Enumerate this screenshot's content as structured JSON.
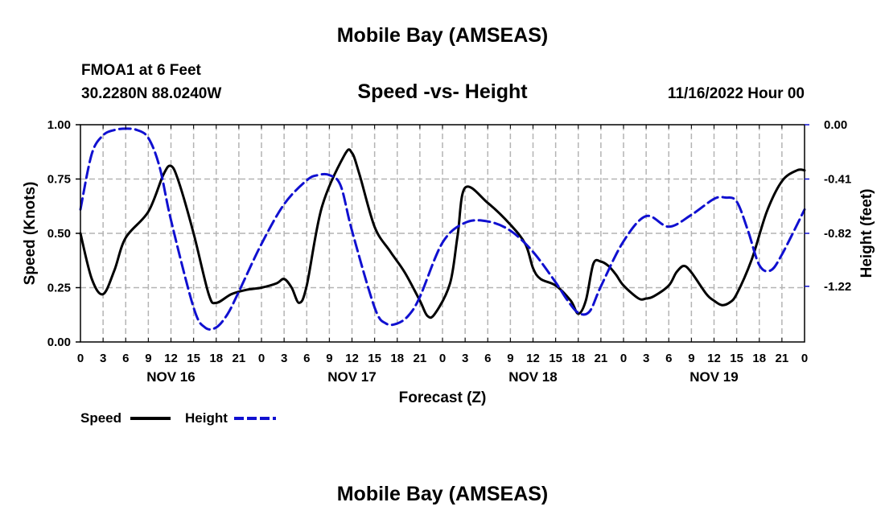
{
  "header": {
    "title": "Mobile Bay (AMSEAS)",
    "station": "FMOA1 at 6 Feet",
    "coords": "30.2280N  88.0240W",
    "subtitle": "Speed -vs- Height",
    "datetime": "11/16/2022 Hour 00"
  },
  "footer": {
    "title": "Mobile Bay (AMSEAS)"
  },
  "colors": {
    "speed": "#000000",
    "height": "#1010d0",
    "grid": "#b4b4b4"
  },
  "chart_data": {
    "type": "line",
    "title": "Speed -vs- Height",
    "xlabel": "Forecast (Z)",
    "ylabel": "Speed (Knots)",
    "y2label": "Height (feet)",
    "xlim": [
      0,
      96
    ],
    "ylim": [
      0,
      1.0
    ],
    "y2lim": [
      -1.64,
      0.0
    ],
    "x_tick_labels": [
      "0",
      "3",
      "6",
      "9",
      "12",
      "15",
      "18",
      "21",
      "0",
      "3",
      "6",
      "9",
      "12",
      "15",
      "18",
      "21",
      "0",
      "3",
      "6",
      "9",
      "12",
      "15",
      "18",
      "21",
      "0",
      "3",
      "6",
      "9",
      "12",
      "15",
      "18",
      "21",
      "0"
    ],
    "day_labels": [
      {
        "label": "NOV 16",
        "x": 12
      },
      {
        "label": "NOV 17",
        "x": 36
      },
      {
        "label": "NOV 18",
        "x": 60
      },
      {
        "label": "NOV 19",
        "x": 84
      }
    ],
    "y_tick_labels": [
      "0.00",
      "0.25",
      "0.50",
      "0.75",
      "1.00"
    ],
    "y_tick_values": [
      0,
      0.25,
      0.5,
      0.75,
      1.0
    ],
    "y2_tick_labels": [
      "0.00",
      "-0.41",
      "-0.82",
      "-1.22"
    ],
    "y2_tick_values": [
      0.0,
      -0.41,
      -0.82,
      -1.22
    ],
    "legend": [
      {
        "name": "Speed",
        "style": "solid"
      },
      {
        "name": "Height",
        "style": "dashed"
      }
    ],
    "series": [
      {
        "name": "Speed",
        "axis": "left",
        "x": [
          0,
          1.5,
          3,
          4.5,
          6,
          9,
          11,
          12,
          13,
          15,
          17,
          18,
          20,
          22,
          24,
          26,
          27,
          28,
          29,
          30,
          32,
          35,
          36,
          37,
          39,
          41,
          43,
          45,
          46,
          47,
          49,
          50,
          51,
          54,
          57,
          59,
          60,
          61,
          63,
          65,
          66,
          67,
          68,
          69,
          70,
          71,
          72,
          74,
          75,
          76,
          78,
          79,
          80,
          81,
          83,
          84,
          85,
          86,
          87,
          89,
          91,
          93,
          95,
          96
        ],
        "values": [
          0.5,
          0.29,
          0.22,
          0.33,
          0.48,
          0.6,
          0.77,
          0.81,
          0.74,
          0.5,
          0.22,
          0.18,
          0.22,
          0.24,
          0.25,
          0.27,
          0.29,
          0.25,
          0.18,
          0.26,
          0.62,
          0.86,
          0.87,
          0.77,
          0.53,
          0.42,
          0.32,
          0.19,
          0.12,
          0.13,
          0.27,
          0.49,
          0.71,
          0.64,
          0.54,
          0.45,
          0.34,
          0.29,
          0.26,
          0.19,
          0.13,
          0.19,
          0.36,
          0.37,
          0.35,
          0.31,
          0.26,
          0.2,
          0.2,
          0.21,
          0.26,
          0.32,
          0.35,
          0.32,
          0.22,
          0.19,
          0.17,
          0.18,
          0.22,
          0.38,
          0.6,
          0.74,
          0.79,
          0.79
        ]
      },
      {
        "name": "Height",
        "axis": "right",
        "x": [
          0,
          1.5,
          3,
          4.5,
          6,
          7.5,
          9,
          10.5,
          12,
          15,
          16.5,
          18,
          19.5,
          21,
          24,
          27,
          30,
          31.5,
          33,
          34.5,
          36,
          39,
          40.5,
          42,
          43.5,
          45,
          48,
          51,
          54,
          57,
          60,
          63,
          64.5,
          66,
          67.5,
          69,
          72,
          75,
          78,
          81,
          84,
          85.5,
          87,
          88.5,
          90,
          91.5,
          93,
          96
        ],
        "values": [
          -0.64,
          -0.22,
          -0.08,
          -0.04,
          -0.03,
          -0.04,
          -0.1,
          -0.32,
          -0.72,
          -1.38,
          -1.53,
          -1.53,
          -1.43,
          -1.26,
          -0.9,
          -0.6,
          -0.42,
          -0.38,
          -0.38,
          -0.46,
          -0.8,
          -1.38,
          -1.5,
          -1.5,
          -1.44,
          -1.3,
          -0.89,
          -0.74,
          -0.73,
          -0.8,
          -0.96,
          -1.19,
          -1.32,
          -1.42,
          -1.41,
          -1.22,
          -0.88,
          -0.69,
          -0.77,
          -0.68,
          -0.56,
          -0.55,
          -0.58,
          -0.8,
          -1.06,
          -1.1,
          -0.98,
          -0.64
        ]
      }
    ]
  }
}
